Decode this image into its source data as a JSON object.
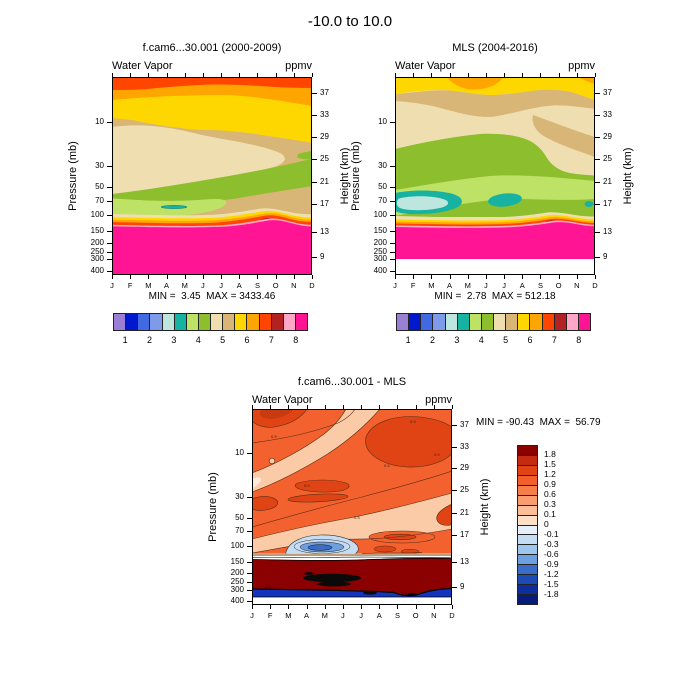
{
  "main_title": "-10.0 to  10.0",
  "panels": {
    "cam": {
      "title": "f.cam6...30.001 (2000-2009)",
      "field": "Water Vapor",
      "units": "ppmv",
      "minmax": "MIN =  3.45  MAX = 3433.46"
    },
    "mls": {
      "title": "MLS (2004-2016)",
      "field": "Water Vapor",
      "units": "ppmv",
      "minmax": "MIN =  2.78  MAX = 512.18"
    },
    "diff": {
      "title": "f.cam6...30.001 - MLS",
      "field": "Water Vapor",
      "units": "ppmv",
      "minmax": "MIN = -90.43  MAX =  56.79",
      "contour_labels": [
        "0.9",
        "0.9",
        "0.9",
        "0.9",
        "0.5",
        "0.3",
        "-1.5",
        "-1.5"
      ]
    }
  },
  "axes": {
    "pressure_label": "Pressure (mb)",
    "height_label": "Height (km)",
    "pressure_ticks": [
      "10",
      "30",
      "50",
      "70",
      "100",
      "150",
      "200",
      "250",
      "300",
      "400"
    ],
    "height_ticks": [
      "37",
      "33",
      "29",
      "25",
      "21",
      "17",
      "13",
      "9"
    ],
    "months": [
      "J",
      "F",
      "M",
      "A",
      "M",
      "J",
      "J",
      "A",
      "S",
      "O",
      "N",
      "D"
    ]
  },
  "colorbar_abs": {
    "labels": [
      "1",
      "2",
      "3",
      "4",
      "5",
      "6",
      "7",
      "8"
    ],
    "colors": [
      "#9B7FD4",
      "#0018CE",
      "#4169E1",
      "#7E9BEA",
      "#BCE6DE",
      "#18B2A2",
      "#BEE266",
      "#8CBE2E",
      "#EFDFB0",
      "#D8B677",
      "#FFD700",
      "#FFA500",
      "#FF4500",
      "#B22222",
      "#FFA6C9",
      "#FF1493"
    ]
  },
  "colorbar_diff": {
    "labels": [
      "1.8",
      "1.5",
      "1.2",
      "0.9",
      "0.6",
      "0.3",
      "0.1",
      "0",
      "-0.1",
      "-0.3",
      "-0.6",
      "-0.9",
      "-1.2",
      "-1.5",
      "-1.8"
    ],
    "colors": [
      "#8B0000",
      "#C42B10",
      "#E04414",
      "#F25F2C",
      "#F67E4B",
      "#F99D70",
      "#FBBE98",
      "#FDE0C8",
      "#E4EFFA",
      "#C6DCF2",
      "#9EC6EA",
      "#6E9FDE",
      "#3A6CC8",
      "#1C4BB4",
      "#0F2E9E",
      "#071C7A"
    ]
  },
  "chart_data": [
    {
      "type": "heatmap",
      "title": "f.cam6...30.001 (2000-2009)",
      "variable": "Water Vapor",
      "units": "ppmv",
      "x_categories": [
        "J",
        "F",
        "M",
        "A",
        "M",
        "J",
        "J",
        "A",
        "S",
        "O",
        "N",
        "D"
      ],
      "y_axis_left": {
        "label": "Pressure (mb)",
        "scale": "log",
        "ticks": [
          10,
          30,
          50,
          70,
          100,
          150,
          200,
          250,
          300,
          400
        ]
      },
      "y_axis_right": {
        "label": "Height (km)",
        "ticks": [
          37,
          33,
          29,
          25,
          21,
          17,
          13,
          9
        ]
      },
      "contour_levels": [
        1,
        1.5,
        2,
        2.5,
        3,
        3.5,
        4,
        4.5,
        5,
        5.5,
        6,
        6.5,
        7,
        7.5,
        8
      ],
      "palette": [
        "#9B7FD4",
        "#0018CE",
        "#4169E1",
        "#7E9BEA",
        "#BCE6DE",
        "#18B2A2",
        "#BEE266",
        "#8CBE2E",
        "#EFDFB0",
        "#D8B677",
        "#FFD700",
        "#FFA500",
        "#FF4500",
        "#B22222",
        "#FFA6C9",
        "#FF1493"
      ],
      "min": 3.45,
      "max": 3433.46,
      "legend_position": "below"
    },
    {
      "type": "heatmap",
      "title": "MLS (2004-2016)",
      "variable": "Water Vapor",
      "units": "ppmv",
      "x_categories": [
        "J",
        "F",
        "M",
        "A",
        "M",
        "J",
        "J",
        "A",
        "S",
        "O",
        "N",
        "D"
      ],
      "y_axis_left": {
        "label": "Pressure (mb)",
        "scale": "log",
        "ticks": [
          10,
          30,
          50,
          70,
          100,
          150,
          200,
          250,
          300,
          400
        ]
      },
      "y_axis_right": {
        "label": "Height (km)",
        "ticks": [
          37,
          33,
          29,
          25,
          21,
          17,
          13,
          9
        ]
      },
      "contour_levels": [
        1,
        1.5,
        2,
        2.5,
        3,
        3.5,
        4,
        4.5,
        5,
        5.5,
        6,
        6.5,
        7,
        7.5,
        8
      ],
      "palette": [
        "#9B7FD4",
        "#0018CE",
        "#4169E1",
        "#7E9BEA",
        "#BCE6DE",
        "#18B2A2",
        "#BEE266",
        "#8CBE2E",
        "#EFDFB0",
        "#D8B677",
        "#FFD700",
        "#FFA500",
        "#FF4500",
        "#B22222",
        "#FFA6C9",
        "#FF1493"
      ],
      "min": 2.78,
      "max": 512.18,
      "legend_position": "below"
    },
    {
      "type": "heatmap",
      "title": "f.cam6...30.001 - MLS",
      "variable": "Water Vapor",
      "units": "ppmv",
      "x_categories": [
        "J",
        "F",
        "M",
        "A",
        "M",
        "J",
        "J",
        "A",
        "S",
        "O",
        "N",
        "D"
      ],
      "y_axis_left": {
        "label": "Pressure (mb)",
        "scale": "log",
        "ticks": [
          10,
          30,
          50,
          70,
          100,
          150,
          200,
          250,
          300,
          400
        ]
      },
      "y_axis_right": {
        "label": "Height (km)",
        "ticks": [
          37,
          33,
          29,
          25,
          21,
          17,
          13,
          9
        ]
      },
      "contour_levels": [
        -1.8,
        -1.5,
        -1.2,
        -0.9,
        -0.6,
        -0.3,
        -0.1,
        0,
        0.1,
        0.3,
        0.6,
        0.9,
        1.2,
        1.5,
        1.8
      ],
      "palette": [
        "#071C7A",
        "#0F2E9E",
        "#1C4BB4",
        "#3A6CC8",
        "#6E9FDE",
        "#9EC6EA",
        "#C6DCF2",
        "#E4EFFA",
        "#FDE0C8",
        "#FBBE98",
        "#F99D70",
        "#F67E4B",
        "#F25F2C",
        "#E04414",
        "#C42B10",
        "#8B0000"
      ],
      "min": -90.43,
      "max": 56.79,
      "legend_position": "right-vertical"
    }
  ]
}
